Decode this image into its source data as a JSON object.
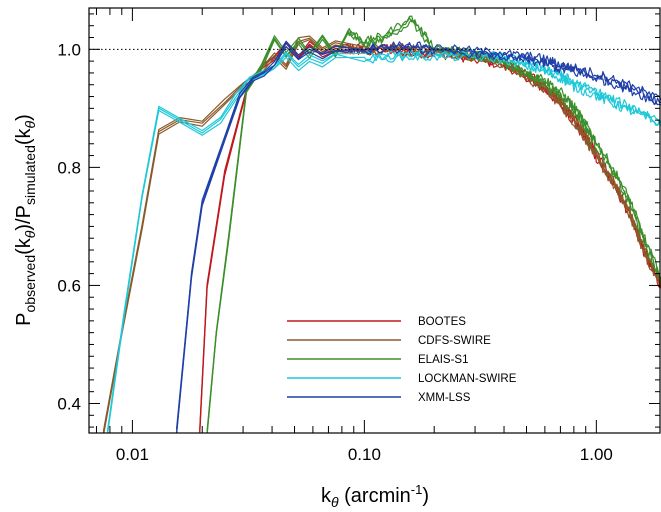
{
  "chart_data": {
    "type": "line",
    "xscale": "log",
    "xlim": [
      0.0065,
      1.9
    ],
    "ylim": [
      0.35,
      1.07
    ],
    "xlabel_main": "k",
    "xlabel_sub": "θ",
    "xlabel_rest": " (arcmin",
    "xlabel_sup": "-1",
    "xlabel_close": ")",
    "ylabel_parts": [
      "P",
      "observed",
      "(k",
      "θ",
      ")/P",
      "simulated",
      "(k",
      "θ",
      ")"
    ],
    "x_ticks": [
      {
        "value": 0.01,
        "label": "0.01"
      },
      {
        "value": 0.1,
        "label": "0.10"
      },
      {
        "value": 1.0,
        "label": "1.00"
      }
    ],
    "y_ticks": [
      {
        "value": 0.4,
        "label": "0.4"
      },
      {
        "value": 0.6,
        "label": "0.6"
      },
      {
        "value": 0.8,
        "label": "0.8"
      },
      {
        "value": 1.0,
        "label": "1.0"
      }
    ],
    "reference_line": {
      "y": 1.0,
      "style": "dotted"
    },
    "grid": false,
    "legend_position": "bottom-center",
    "series": [
      {
        "name": "BOOTES",
        "color": "#c0181c",
        "points": [
          [
            0.0195,
            0.35
          ],
          [
            0.021,
            0.6
          ],
          [
            0.025,
            0.79
          ],
          [
            0.031,
            0.93
          ],
          [
            0.036,
            0.97
          ],
          [
            0.041,
            0.985
          ],
          [
            0.046,
            1.01
          ],
          [
            0.052,
            0.985
          ],
          [
            0.058,
            1.01
          ],
          [
            0.066,
            0.99
          ],
          [
            0.075,
            1.0
          ],
          [
            0.085,
            1.0
          ],
          [
            0.1,
            1.0
          ],
          [
            0.13,
            1.0
          ],
          [
            0.16,
            0.995
          ],
          [
            0.2,
            0.995
          ],
          [
            0.25,
            0.99
          ],
          [
            0.3,
            0.985
          ],
          [
            0.4,
            0.975
          ],
          [
            0.5,
            0.955
          ],
          [
            0.6,
            0.935
          ],
          [
            0.7,
            0.91
          ],
          [
            0.8,
            0.88
          ],
          [
            0.9,
            0.85
          ],
          [
            1.0,
            0.82
          ],
          [
            1.2,
            0.77
          ],
          [
            1.4,
            0.72
          ],
          [
            1.6,
            0.66
          ],
          [
            1.9,
            0.6
          ]
        ]
      },
      {
        "name": "CDFS-SWIRE",
        "color": "#8b5a2b",
        "points": [
          [
            0.0075,
            0.35
          ],
          [
            0.009,
            0.52
          ],
          [
            0.011,
            0.7
          ],
          [
            0.013,
            0.86
          ],
          [
            0.016,
            0.88
          ],
          [
            0.02,
            0.875
          ],
          [
            0.025,
            0.91
          ],
          [
            0.03,
            0.94
          ],
          [
            0.035,
            0.96
          ],
          [
            0.041,
            0.99
          ],
          [
            0.046,
            0.97
          ],
          [
            0.052,
            1.015
          ],
          [
            0.058,
            1.02
          ],
          [
            0.066,
            1.0
          ],
          [
            0.075,
            1.01
          ],
          [
            0.1,
            1.0
          ],
          [
            0.15,
            1.0
          ],
          [
            0.2,
            0.995
          ],
          [
            0.3,
            0.99
          ],
          [
            0.4,
            0.975
          ],
          [
            0.5,
            0.955
          ],
          [
            0.6,
            0.935
          ],
          [
            0.7,
            0.91
          ],
          [
            0.8,
            0.88
          ],
          [
            0.9,
            0.85
          ],
          [
            1.0,
            0.82
          ],
          [
            1.2,
            0.77
          ],
          [
            1.4,
            0.72
          ],
          [
            1.6,
            0.66
          ],
          [
            1.9,
            0.6
          ]
        ]
      },
      {
        "name": "ELAIS-S1",
        "color": "#3a8f2a",
        "points": [
          [
            0.021,
            0.35
          ],
          [
            0.023,
            0.52
          ],
          [
            0.026,
            0.68
          ],
          [
            0.031,
            0.93
          ],
          [
            0.036,
            0.97
          ],
          [
            0.041,
            1.02
          ],
          [
            0.046,
            0.99
          ],
          [
            0.052,
            1.015
          ],
          [
            0.058,
            0.99
          ],
          [
            0.066,
            1.02
          ],
          [
            0.075,
            0.99
          ],
          [
            0.085,
            1.03
          ],
          [
            0.1,
            1.01
          ],
          [
            0.12,
            1.02
          ],
          [
            0.16,
            1.05
          ],
          [
            0.2,
            1.0
          ],
          [
            0.25,
            0.995
          ],
          [
            0.3,
            0.99
          ],
          [
            0.4,
            0.98
          ],
          [
            0.5,
            0.96
          ],
          [
            0.6,
            0.945
          ],
          [
            0.7,
            0.925
          ],
          [
            0.8,
            0.9
          ],
          [
            0.9,
            0.87
          ],
          [
            1.0,
            0.84
          ],
          [
            1.2,
            0.79
          ],
          [
            1.4,
            0.74
          ],
          [
            1.6,
            0.68
          ],
          [
            1.9,
            0.61
          ]
        ]
      },
      {
        "name": "LOCKMAN-SWIRE",
        "color": "#1ec8d8",
        "points": [
          [
            0.0078,
            0.35
          ],
          [
            0.0092,
            0.55
          ],
          [
            0.011,
            0.75
          ],
          [
            0.013,
            0.9
          ],
          [
            0.016,
            0.88
          ],
          [
            0.02,
            0.86
          ],
          [
            0.024,
            0.88
          ],
          [
            0.028,
            0.92
          ],
          [
            0.032,
            0.95
          ],
          [
            0.037,
            0.96
          ],
          [
            0.041,
            0.97
          ],
          [
            0.046,
            0.99
          ],
          [
            0.052,
            0.97
          ],
          [
            0.058,
            0.985
          ],
          [
            0.066,
            0.975
          ],
          [
            0.075,
            0.99
          ],
          [
            0.1,
            0.985
          ],
          [
            0.15,
            0.99
          ],
          [
            0.2,
            0.99
          ],
          [
            0.3,
            0.99
          ],
          [
            0.4,
            0.985
          ],
          [
            0.5,
            0.975
          ],
          [
            0.6,
            0.965
          ],
          [
            0.7,
            0.955
          ],
          [
            0.8,
            0.94
          ],
          [
            1.0,
            0.925
          ],
          [
            1.2,
            0.91
          ],
          [
            1.5,
            0.895
          ],
          [
            1.9,
            0.875
          ]
        ]
      },
      {
        "name": "XMM-LSS",
        "color": "#1f3fa8",
        "points": [
          [
            0.0155,
            0.35
          ],
          [
            0.018,
            0.62
          ],
          [
            0.02,
            0.74
          ],
          [
            0.025,
            0.85
          ],
          [
            0.029,
            0.92
          ],
          [
            0.033,
            0.95
          ],
          [
            0.037,
            0.96
          ],
          [
            0.041,
            0.975
          ],
          [
            0.046,
            1.01
          ],
          [
            0.052,
            0.985
          ],
          [
            0.058,
            1.0
          ],
          [
            0.066,
            0.99
          ],
          [
            0.075,
            1.0
          ],
          [
            0.1,
            1.0
          ],
          [
            0.15,
            1.005
          ],
          [
            0.2,
            1.0
          ],
          [
            0.3,
            0.995
          ],
          [
            0.4,
            0.99
          ],
          [
            0.5,
            0.985
          ],
          [
            0.6,
            0.98
          ],
          [
            0.7,
            0.97
          ],
          [
            0.8,
            0.965
          ],
          [
            1.0,
            0.955
          ],
          [
            1.2,
            0.945
          ],
          [
            1.5,
            0.93
          ],
          [
            1.9,
            0.91
          ]
        ]
      }
    ]
  }
}
